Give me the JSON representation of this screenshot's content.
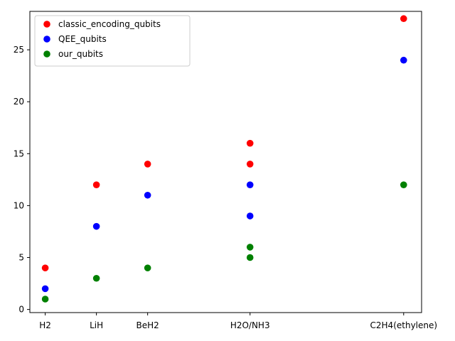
{
  "chart_data": {
    "type": "scatter",
    "title": "",
    "xlabel": "",
    "ylabel": "",
    "categories": [
      "H2",
      "LiH",
      "BeH2",
      "H2O/NH3",
      "C2H4(ethylene)"
    ],
    "category_positions": [
      0,
      1,
      2,
      4,
      7
    ],
    "xlim": [
      -0.3,
      7.35
    ],
    "ylim": [
      -0.3,
      28.7
    ],
    "yticks": [
      0,
      5,
      10,
      15,
      20,
      25
    ],
    "grid": false,
    "legend": "top-left",
    "series": [
      {
        "name": "classic_encoding_qubits",
        "color": "#ff0000",
        "points": [
          {
            "x": "H2",
            "y": 4
          },
          {
            "x": "LiH",
            "y": 12
          },
          {
            "x": "BeH2",
            "y": 14
          },
          {
            "x": "H2O/NH3",
            "y": 14
          },
          {
            "x": "H2O/NH3",
            "y": 16
          },
          {
            "x": "C2H4(ethylene)",
            "y": 28
          }
        ]
      },
      {
        "name": "QEE_qubits",
        "color": "#0000ff",
        "points": [
          {
            "x": "H2",
            "y": 2
          },
          {
            "x": "LiH",
            "y": 8
          },
          {
            "x": "BeH2",
            "y": 11
          },
          {
            "x": "H2O/NH3",
            "y": 9
          },
          {
            "x": "H2O/NH3",
            "y": 12
          },
          {
            "x": "C2H4(ethylene)",
            "y": 24
          }
        ]
      },
      {
        "name": "our_qubits",
        "color": "#008000",
        "points": [
          {
            "x": "H2",
            "y": 1
          },
          {
            "x": "LiH",
            "y": 3
          },
          {
            "x": "BeH2",
            "y": 4
          },
          {
            "x": "H2O/NH3",
            "y": 5
          },
          {
            "x": "H2O/NH3",
            "y": 6
          },
          {
            "x": "C2H4(ethylene)",
            "y": 12
          }
        ]
      }
    ]
  }
}
